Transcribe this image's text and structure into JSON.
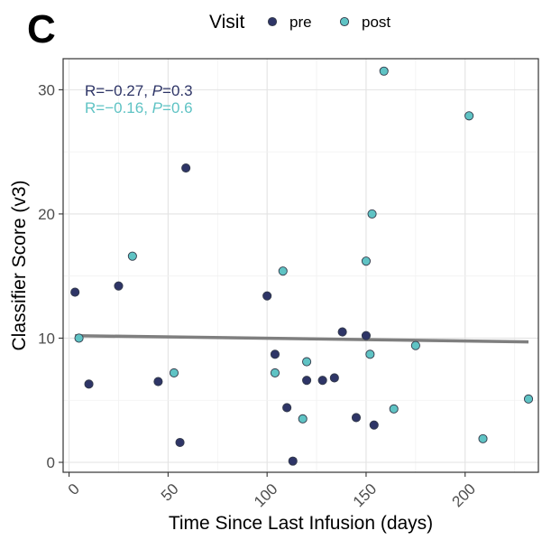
{
  "panel_label": "C",
  "chart_data": {
    "type": "scatter",
    "xlabel": "Time Since Last Infusion (days)",
    "ylabel": "Classifier Score (v3)",
    "xlim": [
      -3,
      237
    ],
    "ylim": [
      -0.8,
      32.5
    ],
    "x_ticks": [
      0,
      50,
      100,
      150,
      200
    ],
    "x_tick_labels": [
      "0",
      "50",
      "100",
      "150",
      "200"
    ],
    "y_ticks": [
      0,
      10,
      20,
      30
    ],
    "y_tick_labels": [
      "0",
      "10",
      "20",
      "30"
    ],
    "grid": true,
    "legend": {
      "title": "Visit",
      "placement": "top",
      "entries": [
        {
          "label": "pre",
          "color": "#2e3567"
        },
        {
          "label": "post",
          "color": "#5fc3c4"
        }
      ]
    },
    "annotations": [
      {
        "prefix": "R=−0.27, ",
        "italic": "P",
        "suffix": "=0.3",
        "color": "#2e3567"
      },
      {
        "prefix": "R=−0.16, ",
        "italic": "P",
        "suffix": "=0.6",
        "color": "#5fc3c4"
      }
    ],
    "trend_line": {
      "x": [
        3,
        232
      ],
      "y": [
        10.2,
        9.7
      ],
      "color": "#7f7f7f"
    },
    "series": [
      {
        "name": "pre",
        "color": "#2e3567",
        "points": [
          [
            3,
            13.7
          ],
          [
            10,
            6.3
          ],
          [
            25,
            14.2
          ],
          [
            45,
            6.5
          ],
          [
            56,
            1.6
          ],
          [
            59,
            23.7
          ],
          [
            100,
            13.4
          ],
          [
            104,
            8.7
          ],
          [
            110,
            4.4
          ],
          [
            113,
            0.1
          ],
          [
            120,
            6.6
          ],
          [
            128,
            6.6
          ],
          [
            134,
            6.8
          ],
          [
            138,
            10.5
          ],
          [
            145,
            3.6
          ],
          [
            150,
            10.2
          ],
          [
            154,
            3.0
          ]
        ]
      },
      {
        "name": "post",
        "color": "#5fc3c4",
        "points": [
          [
            5,
            10.0
          ],
          [
            32,
            16.6
          ],
          [
            53,
            7.2
          ],
          [
            104,
            7.2
          ],
          [
            108,
            15.4
          ],
          [
            118,
            3.5
          ],
          [
            120,
            8.1
          ],
          [
            150,
            16.2
          ],
          [
            152,
            8.7
          ],
          [
            153,
            20.0
          ],
          [
            159,
            31.5
          ],
          [
            164,
            4.3
          ],
          [
            175,
            9.4
          ],
          [
            202,
            27.9
          ],
          [
            209,
            1.9
          ],
          [
            232,
            5.1
          ]
        ]
      }
    ]
  }
}
